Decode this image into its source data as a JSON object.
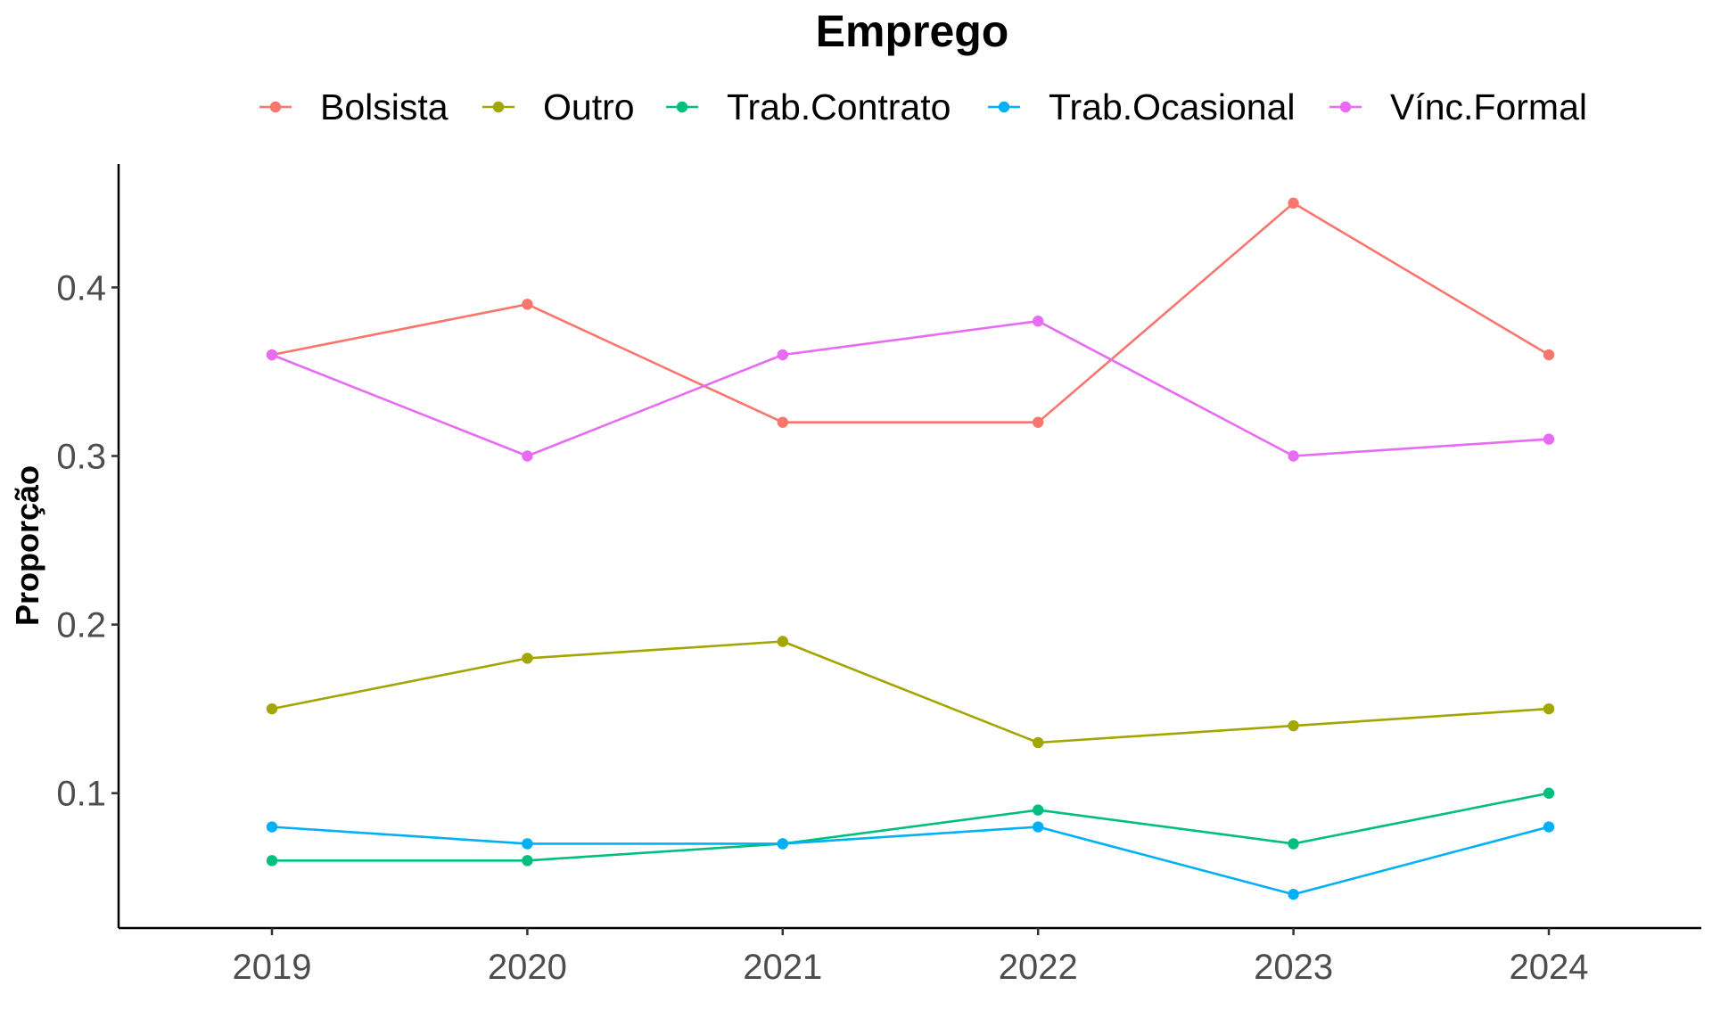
{
  "chart_data": {
    "type": "line",
    "title": "Emprego",
    "xlabel": "",
    "ylabel": "Proporção",
    "x": [
      "2019",
      "2020",
      "2021",
      "2022",
      "2023",
      "2024"
    ],
    "yticks": [
      "0.1",
      "0.2",
      "0.3",
      "0.4"
    ],
    "ylim": [
      0.02,
      0.47
    ],
    "grid": false,
    "legend_position": "top",
    "series": [
      {
        "name": "Bolsista",
        "color": "#F8766D",
        "values": [
          0.36,
          0.39,
          0.32,
          0.32,
          0.45,
          0.36
        ]
      },
      {
        "name": "Outro",
        "color": "#A3A500",
        "values": [
          0.15,
          0.18,
          0.19,
          0.13,
          0.14,
          0.15
        ]
      },
      {
        "name": "Trab.Contrato",
        "color": "#00BF7D",
        "values": [
          0.06,
          0.06,
          0.07,
          0.09,
          0.07,
          0.1
        ]
      },
      {
        "name": "Trab.Ocasional",
        "color": "#00B0F6",
        "values": [
          0.08,
          0.07,
          0.07,
          0.08,
          0.04,
          0.08
        ]
      },
      {
        "name": "Vínc.Formal",
        "color": "#E76BF3",
        "values": [
          0.36,
          0.3,
          0.36,
          0.38,
          0.3,
          0.31
        ]
      }
    ]
  }
}
